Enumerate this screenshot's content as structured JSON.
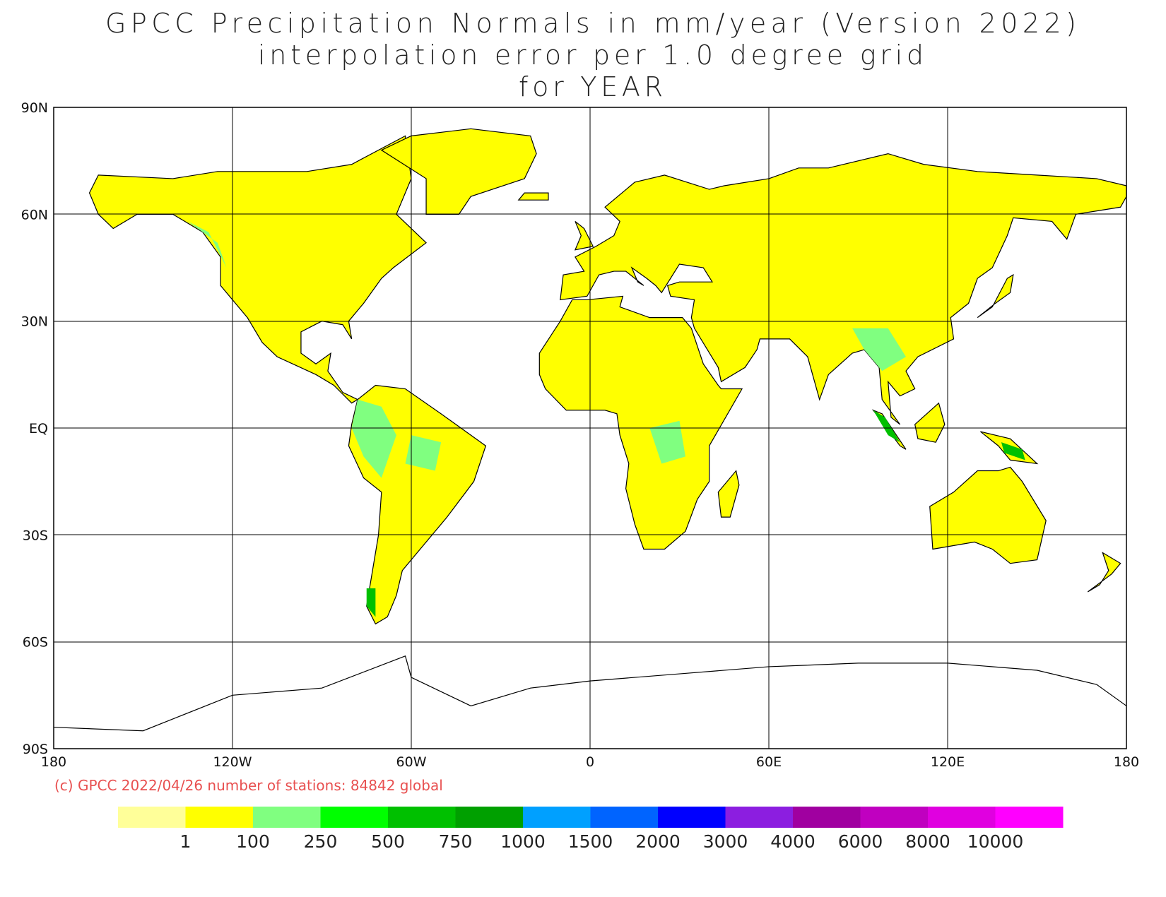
{
  "title_lines": [
    "GPCC Precipitation Normals in mm/year (Version 2022)",
    "interpolation error per 1.0 degree grid",
    "for YEAR"
  ],
  "lat_labels": [
    "90N",
    "60N",
    "30N",
    "EQ",
    "30S",
    "60S",
    "90S"
  ],
  "lon_labels": [
    "180",
    "120W",
    "60W",
    "0",
    "60E",
    "120E",
    "180"
  ],
  "footer": "(c) GPCC 2022/04/26 number of stations: 84842 global",
  "colorbar": {
    "colors": [
      "#ffff99",
      "#ffff00",
      "#80ff80",
      "#00ff00",
      "#00c000",
      "#00a000",
      "#00a0ff",
      "#0064ff",
      "#0000ff",
      "#8c1ee0",
      "#a000a0",
      "#c000c0",
      "#e000e0",
      "#ff00ff"
    ],
    "labels": [
      "1",
      "100",
      "250",
      "500",
      "750",
      "1000",
      "1500",
      "2000",
      "3000",
      "4000",
      "6000",
      "8000",
      "10000"
    ]
  }
}
